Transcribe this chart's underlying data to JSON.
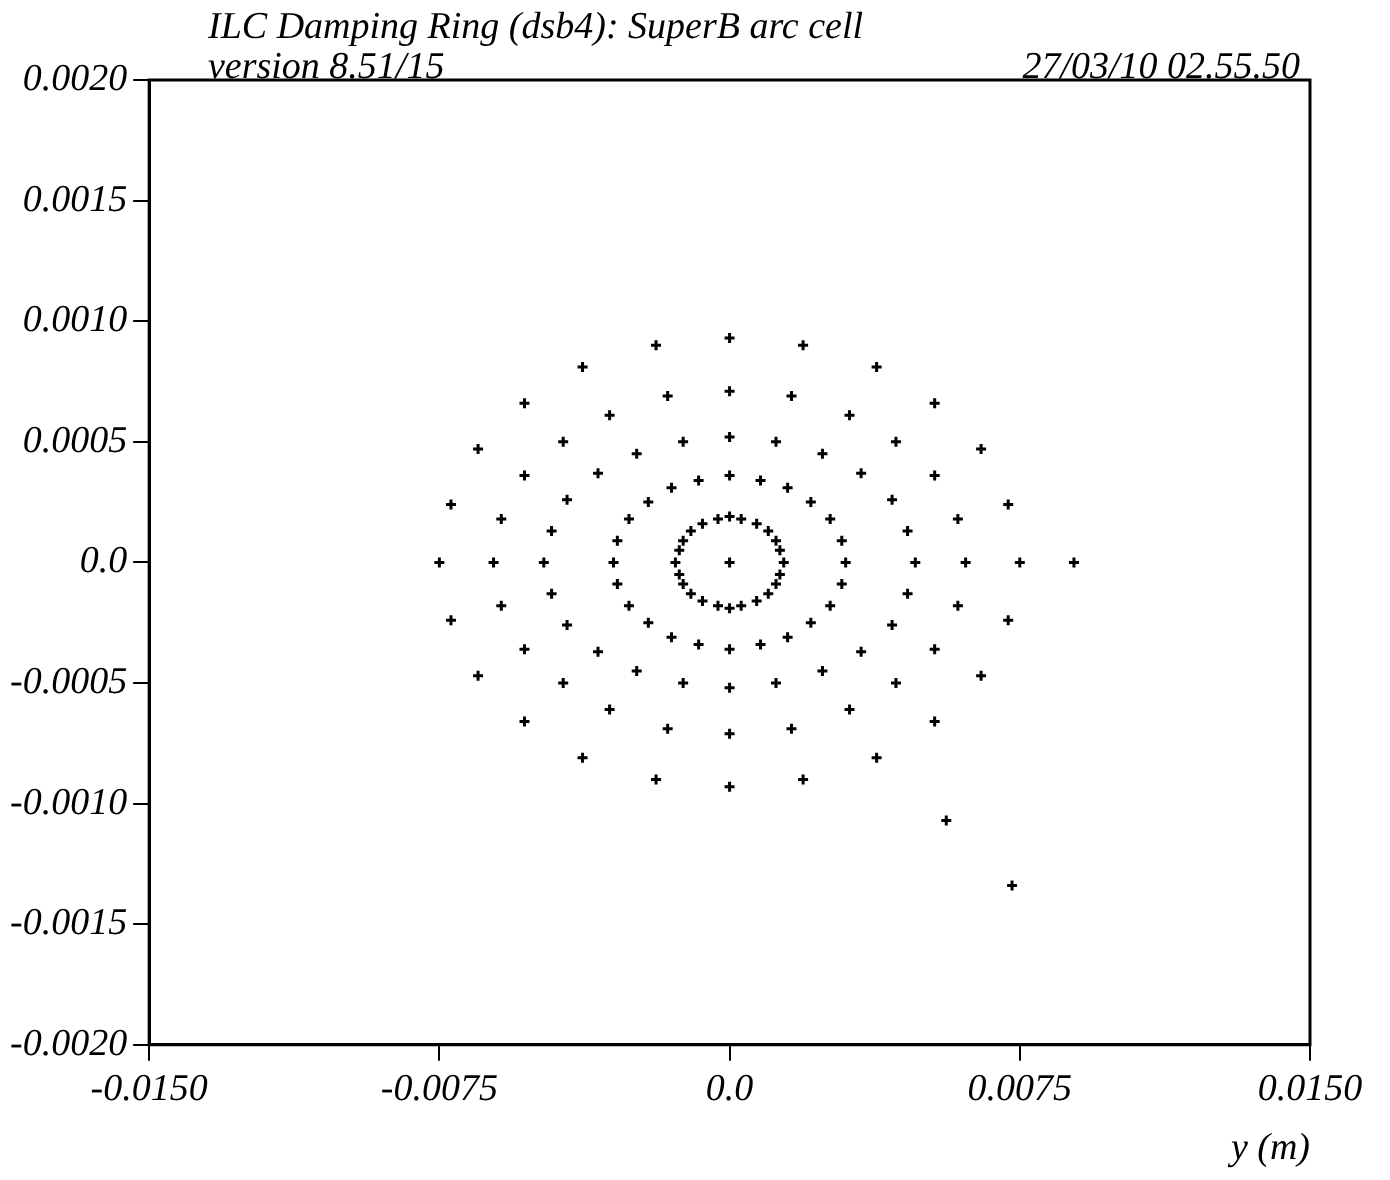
{
  "chart_data": {
    "type": "scatter",
    "title": "ILC Damping Ring (dsb4): SuperB arc cell",
    "subtitle": "version 8.51/15",
    "annotations": [
      "27/03/10  02.55.50"
    ],
    "xlabel": "y (m)",
    "marker": "cross",
    "grid": false,
    "xlim": [
      -0.015,
      0.015
    ],
    "xticks": [
      {
        "value": -0.015,
        "label": "-0.0150"
      },
      {
        "value": -0.0075,
        "label": "-0.0075"
      },
      {
        "value": 0,
        "label": "0.0"
      },
      {
        "value": 0.0075,
        "label": "0.0075"
      },
      {
        "value": 0.015,
        "label": "0.0150"
      }
    ],
    "ylim": [
      -0.002,
      0.002
    ],
    "yticks": [
      {
        "value": -0.002,
        "label": "-0.0020"
      },
      {
        "value": -0.0015,
        "label": "-0.0015"
      },
      {
        "value": -0.001,
        "label": "-0.0010"
      },
      {
        "value": -0.0005,
        "label": "-0.0005"
      },
      {
        "value": 0,
        "label": "0.0"
      },
      {
        "value": 0.0005,
        "label": "0.0005"
      },
      {
        "value": 0.001,
        "label": "0.0010"
      },
      {
        "value": 0.0015,
        "label": "0.0015"
      },
      {
        "value": 0.002,
        "label": "0.0020"
      }
    ],
    "series": [
      {
        "color": "#000000",
        "x": [
          0.0075,
          0.0072,
          0.0065,
          0.0053,
          0.0038,
          0.0019,
          0,
          -0.0019,
          -0.0038,
          -0.0053,
          -0.0065,
          -0.0072,
          -0.0075,
          -0.0072,
          -0.0065,
          -0.0053,
          -0.0038,
          -0.0019,
          0,
          0.0019,
          0.0038,
          0.0053,
          0.0065,
          0.0072
        ],
        "values": [
          0,
          0.00024,
          0.00047,
          0.00066,
          0.00081,
          0.0009,
          0.00093,
          0.0009,
          0.00081,
          0.00066,
          0.00047,
          0.00024,
          0,
          -0.00024,
          -0.00047,
          -0.00066,
          -0.00081,
          -0.0009,
          -0.00093,
          -0.0009,
          -0.00081,
          -0.00066,
          -0.00047,
          -0.00024
        ]
      },
      {
        "color": "#000000",
        "x": [
          0.0061,
          0.0059,
          0.0053,
          0.0043,
          0.0031,
          0.0016,
          0,
          -0.0016,
          -0.0031,
          -0.0043,
          -0.0053,
          -0.0059,
          -0.0061,
          -0.0059,
          -0.0053,
          -0.0043,
          -0.0031,
          -0.0016,
          0,
          0.0016,
          0.0031,
          0.0043,
          0.0053,
          0.0059
        ],
        "values": [
          0,
          0.00018,
          0.00036,
          0.0005,
          0.00061,
          0.00069,
          0.00071,
          0.00069,
          0.00061,
          0.0005,
          0.00036,
          0.00018,
          0,
          -0.00018,
          -0.00036,
          -0.0005,
          -0.00061,
          -0.00069,
          -0.00071,
          -0.00069,
          -0.00061,
          -0.0005,
          -0.00036,
          -0.00018
        ]
      },
      {
        "color": "#000000",
        "x": [
          0.0048,
          0.0046,
          0.0042,
          0.0034,
          0.0024,
          0.0012,
          0,
          -0.0012,
          -0.0024,
          -0.0034,
          -0.0042,
          -0.0046,
          -0.0048,
          -0.0046,
          -0.0042,
          -0.0034,
          -0.0024,
          -0.0012,
          0,
          0.0012,
          0.0024,
          0.0034,
          0.0042,
          0.0046
        ],
        "values": [
          0,
          0.00013,
          0.00026,
          0.00037,
          0.00045,
          0.0005,
          0.00052,
          0.0005,
          0.00045,
          0.00037,
          0.00026,
          0.00013,
          0,
          -0.00013,
          -0.00026,
          -0.00037,
          -0.00045,
          -0.0005,
          -0.00052,
          -0.0005,
          -0.00045,
          -0.00037,
          -0.00026,
          -0.00013
        ]
      },
      {
        "color": "#000000",
        "x": [
          0.003,
          0.0029,
          0.0026,
          0.0021,
          0.0015,
          0.0008,
          0,
          -0.0008,
          -0.0015,
          -0.0021,
          -0.0026,
          -0.0029,
          -0.003,
          -0.0029,
          -0.0026,
          -0.0021,
          -0.0015,
          -0.0008,
          0,
          0.0008,
          0.0015,
          0.0021,
          0.0026,
          0.0029
        ],
        "values": [
          0,
          9e-05,
          0.00018,
          0.00025,
          0.00031,
          0.00034,
          0.00036,
          0.00034,
          0.00031,
          0.00025,
          0.00018,
          9e-05,
          0,
          -9e-05,
          -0.00018,
          -0.00025,
          -0.00031,
          -0.00034,
          -0.00036,
          -0.00034,
          -0.00031,
          -0.00025,
          -0.00018,
          -9e-05
        ]
      },
      {
        "color": "#000000",
        "x": [
          0.0014,
          0.0013,
          0.0012,
          0.001,
          0.0007,
          0.0003,
          0,
          -0.0003,
          -0.0007,
          -0.001,
          -0.0012,
          -0.0013,
          -0.0014,
          -0.0013,
          -0.0012,
          -0.001,
          -0.0007,
          -0.0003,
          0,
          0.0003,
          0.0007,
          0.001,
          0.0012,
          0.0013
        ],
        "values": [
          0,
          5e-05,
          9e-05,
          0.00013,
          0.00016,
          0.00018,
          0.00019,
          0.00018,
          0.00016,
          0.00013,
          9e-05,
          5e-05,
          0,
          -5e-05,
          -9e-05,
          -0.00013,
          -0.00016,
          -0.00018,
          -0.00019,
          -0.00018,
          -0.00016,
          -0.00013,
          -9e-05,
          -5e-05
        ]
      },
      {
        "color": "#000000",
        "x": [
          0,
          0.0089,
          0.0056,
          0.0073
        ],
        "values": [
          0,
          0,
          -0.00107,
          -0.00134
        ]
      }
    ]
  }
}
